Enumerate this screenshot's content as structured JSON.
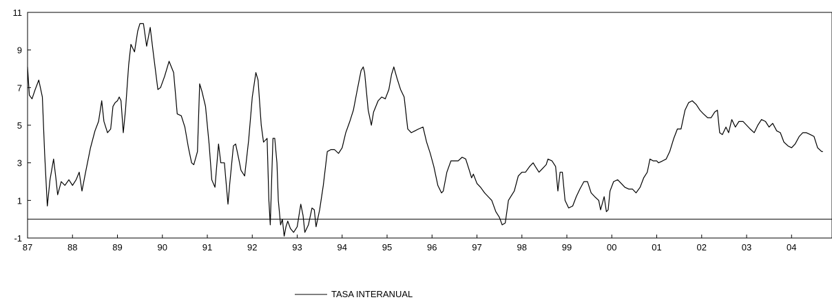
{
  "chart_data": {
    "type": "line",
    "title": "",
    "xlabel": "",
    "ylabel": "",
    "x_range": [
      1987.0,
      2004.9
    ],
    "ylim": [
      -1,
      11
    ],
    "y_ticks": [
      -1,
      1,
      3,
      5,
      7,
      9,
      11
    ],
    "x_ticks": [
      {
        "value": 1987,
        "label": "87"
      },
      {
        "value": 1988,
        "label": "88"
      },
      {
        "value": 1989,
        "label": "89"
      },
      {
        "value": 1990,
        "label": "90"
      },
      {
        "value": 1991,
        "label": "91"
      },
      {
        "value": 1992,
        "label": "92"
      },
      {
        "value": 1993,
        "label": "93"
      },
      {
        "value": 1994,
        "label": "94"
      },
      {
        "value": 1995,
        "label": "95"
      },
      {
        "value": 1996,
        "label": "96"
      },
      {
        "value": 1997,
        "label": "97"
      },
      {
        "value": 1998,
        "label": "98"
      },
      {
        "value": 1999,
        "label": "99"
      },
      {
        "value": 2000,
        "label": "00"
      },
      {
        "value": 2001,
        "label": "01"
      },
      {
        "value": 2002,
        "label": "02"
      },
      {
        "value": 2003,
        "label": "03"
      },
      {
        "value": 2004,
        "label": "04"
      }
    ],
    "reference_line": 0,
    "grid": false,
    "legend_position": "bottom-center",
    "series": [
      {
        "name": "TASA INTERANUAL",
        "color": "#000000",
        "points": [
          [
            1987.0,
            8.1
          ],
          [
            1987.04,
            6.6
          ],
          [
            1987.1,
            6.4
          ],
          [
            1987.17,
            6.9
          ],
          [
            1987.25,
            7.4
          ],
          [
            1987.33,
            6.5
          ],
          [
            1987.38,
            3.5
          ],
          [
            1987.44,
            0.7
          ],
          [
            1987.5,
            2.1
          ],
          [
            1987.58,
            3.2
          ],
          [
            1987.63,
            2.2
          ],
          [
            1987.67,
            1.3
          ],
          [
            1987.75,
            2.0
          ],
          [
            1987.83,
            1.8
          ],
          [
            1987.92,
            2.1
          ],
          [
            1988.0,
            1.8
          ],
          [
            1988.08,
            2.1
          ],
          [
            1988.15,
            2.5
          ],
          [
            1988.21,
            1.5
          ],
          [
            1988.3,
            2.6
          ],
          [
            1988.4,
            3.8
          ],
          [
            1988.5,
            4.7
          ],
          [
            1988.58,
            5.2
          ],
          [
            1988.65,
            6.3
          ],
          [
            1988.7,
            5.2
          ],
          [
            1988.78,
            4.6
          ],
          [
            1988.85,
            4.8
          ],
          [
            1988.9,
            6.0
          ],
          [
            1988.95,
            6.2
          ],
          [
            1989.0,
            6.3
          ],
          [
            1989.04,
            6.5
          ],
          [
            1989.08,
            6.3
          ],
          [
            1989.13,
            4.6
          ],
          [
            1989.18,
            5.8
          ],
          [
            1989.25,
            8.2
          ],
          [
            1989.3,
            9.3
          ],
          [
            1989.38,
            8.9
          ],
          [
            1989.45,
            10.0
          ],
          [
            1989.5,
            10.4
          ],
          [
            1989.58,
            10.4
          ],
          [
            1989.65,
            9.2
          ],
          [
            1989.73,
            10.2
          ],
          [
            1989.8,
            8.8
          ],
          [
            1989.9,
            6.9
          ],
          [
            1989.96,
            7.0
          ],
          [
            1990.05,
            7.6
          ],
          [
            1990.15,
            8.4
          ],
          [
            1990.25,
            7.8
          ],
          [
            1990.33,
            5.6
          ],
          [
            1990.42,
            5.5
          ],
          [
            1990.5,
            4.9
          ],
          [
            1990.58,
            3.8
          ],
          [
            1990.65,
            3.0
          ],
          [
            1990.7,
            2.9
          ],
          [
            1990.78,
            3.6
          ],
          [
            1990.83,
            7.2
          ],
          [
            1990.88,
            6.8
          ],
          [
            1990.96,
            6.0
          ],
          [
            1991.04,
            4.0
          ],
          [
            1991.1,
            2.1
          ],
          [
            1991.17,
            1.7
          ],
          [
            1991.25,
            4.0
          ],
          [
            1991.3,
            3.0
          ],
          [
            1991.38,
            3.0
          ],
          [
            1991.46,
            0.8
          ],
          [
            1991.5,
            1.9
          ],
          [
            1991.58,
            3.9
          ],
          [
            1991.63,
            4.0
          ],
          [
            1991.7,
            3.2
          ],
          [
            1991.75,
            2.6
          ],
          [
            1991.83,
            2.3
          ],
          [
            1991.92,
            4.2
          ],
          [
            1992.0,
            6.5
          ],
          [
            1992.08,
            7.8
          ],
          [
            1992.13,
            7.4
          ],
          [
            1992.2,
            5.0
          ],
          [
            1992.25,
            4.1
          ],
          [
            1992.33,
            4.3
          ],
          [
            1992.37,
            1.0
          ],
          [
            1992.4,
            -0.3
          ],
          [
            1992.46,
            4.3
          ],
          [
            1992.5,
            4.3
          ],
          [
            1992.55,
            3.0
          ],
          [
            1992.58,
            1.0
          ],
          [
            1992.63,
            -0.3
          ],
          [
            1992.67,
            0.0
          ],
          [
            1992.71,
            -0.9
          ],
          [
            1992.75,
            -0.4
          ],
          [
            1992.79,
            -0.1
          ],
          [
            1992.85,
            -0.5
          ],
          [
            1992.92,
            -0.7
          ],
          [
            1993.0,
            -0.4
          ],
          [
            1993.08,
            0.8
          ],
          [
            1993.13,
            0.2
          ],
          [
            1993.17,
            -0.7
          ],
          [
            1993.25,
            -0.3
          ],
          [
            1993.33,
            0.6
          ],
          [
            1993.38,
            0.5
          ],
          [
            1993.42,
            -0.4
          ],
          [
            1993.5,
            0.5
          ],
          [
            1993.58,
            1.8
          ],
          [
            1993.67,
            3.6
          ],
          [
            1993.75,
            3.7
          ],
          [
            1993.83,
            3.7
          ],
          [
            1993.92,
            3.5
          ],
          [
            1994.0,
            3.8
          ],
          [
            1994.08,
            4.6
          ],
          [
            1994.17,
            5.2
          ],
          [
            1994.25,
            5.8
          ],
          [
            1994.33,
            6.8
          ],
          [
            1994.42,
            7.9
          ],
          [
            1994.47,
            8.1
          ],
          [
            1994.5,
            7.8
          ],
          [
            1994.58,
            5.8
          ],
          [
            1994.65,
            5.0
          ],
          [
            1994.7,
            5.7
          ],
          [
            1994.8,
            6.3
          ],
          [
            1994.88,
            6.5
          ],
          [
            1994.96,
            6.4
          ],
          [
            1995.04,
            6.9
          ],
          [
            1995.1,
            7.7
          ],
          [
            1995.15,
            8.1
          ],
          [
            1995.22,
            7.5
          ],
          [
            1995.3,
            6.9
          ],
          [
            1995.38,
            6.5
          ],
          [
            1995.46,
            4.8
          ],
          [
            1995.54,
            4.6
          ],
          [
            1995.62,
            4.7
          ],
          [
            1995.7,
            4.8
          ],
          [
            1995.8,
            4.9
          ],
          [
            1995.88,
            4.1
          ],
          [
            1995.96,
            3.5
          ],
          [
            1996.04,
            2.8
          ],
          [
            1996.13,
            1.8
          ],
          [
            1996.21,
            1.4
          ],
          [
            1996.25,
            1.5
          ],
          [
            1996.33,
            2.5
          ],
          [
            1996.42,
            3.1
          ],
          [
            1996.5,
            3.1
          ],
          [
            1996.58,
            3.1
          ],
          [
            1996.67,
            3.3
          ],
          [
            1996.75,
            3.2
          ],
          [
            1996.83,
            2.6
          ],
          [
            1996.88,
            2.2
          ],
          [
            1996.92,
            2.4
          ],
          [
            1997.0,
            1.9
          ],
          [
            1997.08,
            1.7
          ],
          [
            1997.17,
            1.4
          ],
          [
            1997.25,
            1.2
          ],
          [
            1997.33,
            1.0
          ],
          [
            1997.42,
            0.4
          ],
          [
            1997.5,
            0.1
          ],
          [
            1997.56,
            -0.3
          ],
          [
            1997.63,
            -0.2
          ],
          [
            1997.7,
            1.0
          ],
          [
            1997.75,
            1.2
          ],
          [
            1997.83,
            1.5
          ],
          [
            1997.92,
            2.3
          ],
          [
            1998.0,
            2.5
          ],
          [
            1998.08,
            2.5
          ],
          [
            1998.17,
            2.8
          ],
          [
            1998.25,
            3.0
          ],
          [
            1998.3,
            2.8
          ],
          [
            1998.38,
            2.5
          ],
          [
            1998.46,
            2.7
          ],
          [
            1998.54,
            2.9
          ],
          [
            1998.58,
            3.2
          ],
          [
            1998.67,
            3.1
          ],
          [
            1998.75,
            2.8
          ],
          [
            1998.8,
            1.5
          ],
          [
            1998.85,
            2.5
          ],
          [
            1998.9,
            2.5
          ],
          [
            1998.96,
            1.0
          ],
          [
            1999.04,
            0.6
          ],
          [
            1999.13,
            0.7
          ],
          [
            1999.21,
            1.2
          ],
          [
            1999.29,
            1.6
          ],
          [
            1999.38,
            2.0
          ],
          [
            1999.46,
            2.0
          ],
          [
            1999.54,
            1.4
          ],
          [
            1999.62,
            1.2
          ],
          [
            1999.71,
            1.0
          ],
          [
            1999.75,
            0.5
          ],
          [
            1999.83,
            1.2
          ],
          [
            1999.88,
            0.4
          ],
          [
            1999.92,
            0.5
          ],
          [
            1999.96,
            1.5
          ],
          [
            2000.04,
            2.0
          ],
          [
            2000.13,
            2.1
          ],
          [
            2000.21,
            1.9
          ],
          [
            2000.29,
            1.7
          ],
          [
            2000.38,
            1.6
          ],
          [
            2000.46,
            1.6
          ],
          [
            2000.54,
            1.4
          ],
          [
            2000.63,
            1.7
          ],
          [
            2000.71,
            2.2
          ],
          [
            2000.79,
            2.5
          ],
          [
            2000.85,
            3.2
          ],
          [
            2000.92,
            3.1
          ],
          [
            2001.0,
            3.1
          ],
          [
            2001.04,
            3.0
          ],
          [
            2001.13,
            3.1
          ],
          [
            2001.21,
            3.2
          ],
          [
            2001.29,
            3.6
          ],
          [
            2001.38,
            4.3
          ],
          [
            2001.46,
            4.8
          ],
          [
            2001.54,
            4.8
          ],
          [
            2001.63,
            5.8
          ],
          [
            2001.71,
            6.2
          ],
          [
            2001.79,
            6.3
          ],
          [
            2001.88,
            6.1
          ],
          [
            2001.96,
            5.8
          ],
          [
            2002.04,
            5.6
          ],
          [
            2002.13,
            5.4
          ],
          [
            2002.21,
            5.4
          ],
          [
            2002.29,
            5.7
          ],
          [
            2002.35,
            5.8
          ],
          [
            2002.4,
            4.6
          ],
          [
            2002.46,
            4.5
          ],
          [
            2002.54,
            4.9
          ],
          [
            2002.6,
            4.6
          ],
          [
            2002.67,
            5.3
          ],
          [
            2002.75,
            4.9
          ],
          [
            2002.83,
            5.2
          ],
          [
            2002.92,
            5.2
          ],
          [
            2003.0,
            5.0
          ],
          [
            2003.08,
            4.8
          ],
          [
            2003.17,
            4.6
          ],
          [
            2003.25,
            5.0
          ],
          [
            2003.33,
            5.3
          ],
          [
            2003.42,
            5.2
          ],
          [
            2003.5,
            4.9
          ],
          [
            2003.58,
            5.1
          ],
          [
            2003.67,
            4.7
          ],
          [
            2003.75,
            4.6
          ],
          [
            2003.83,
            4.1
          ],
          [
            2003.92,
            3.9
          ],
          [
            2004.0,
            3.8
          ],
          [
            2004.08,
            4.0
          ],
          [
            2004.17,
            4.4
          ],
          [
            2004.25,
            4.6
          ],
          [
            2004.33,
            4.6
          ],
          [
            2004.42,
            4.5
          ],
          [
            2004.5,
            4.4
          ],
          [
            2004.58,
            3.8
          ],
          [
            2004.67,
            3.6
          ],
          [
            2004.7,
            3.6
          ]
        ]
      }
    ]
  }
}
